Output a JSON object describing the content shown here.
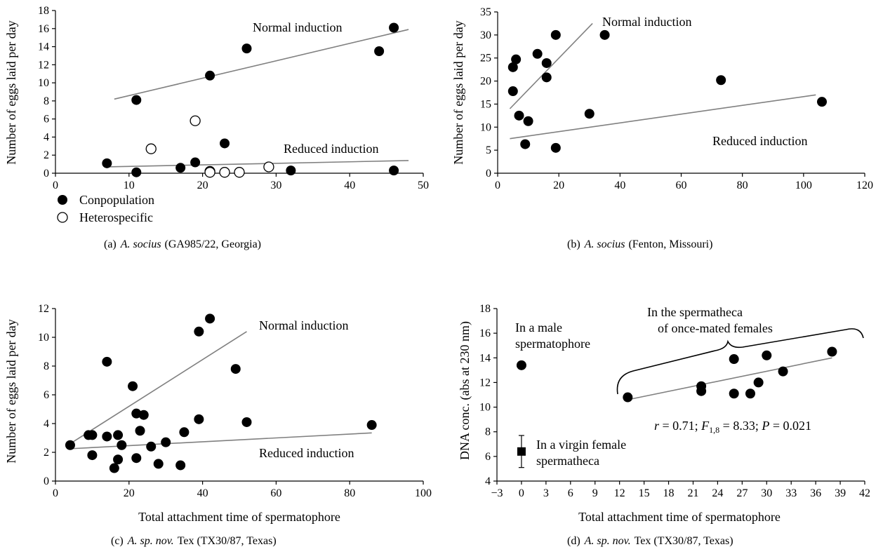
{
  "colors": {
    "marker_fill": "#000000",
    "marker_open": "#ffffff",
    "trendline": "#808080",
    "axis": "#000000"
  },
  "chart_data": [
    {
      "id": "a",
      "type": "scatter",
      "caption": {
        "label": "(a)",
        "species": "A. socius",
        "rest": "(GA985/22, Georgia)"
      },
      "xlabel": "",
      "ylabel": "Number of eggs laid per day",
      "xlim": [
        0,
        50
      ],
      "ylim": [
        0,
        18
      ],
      "xticks": [
        0,
        10,
        20,
        30,
        40,
        50
      ],
      "yticks": [
        0,
        2,
        4,
        6,
        8,
        10,
        12,
        14,
        16,
        18
      ],
      "legend": {
        "placement": "bottom-left",
        "entries": [
          {
            "label": "Conpopulation",
            "marker": "filled-circle"
          },
          {
            "label": "Heterospecific",
            "marker": "open-circle"
          }
        ]
      },
      "series": [
        {
          "name": "Conpopulation",
          "marker": "filled-circle",
          "points": [
            [
              7,
              1.1
            ],
            [
              11,
              0.1
            ],
            [
              11,
              8.1
            ],
            [
              17,
              0.6
            ],
            [
              19,
              1.2
            ],
            [
              21,
              10.8
            ],
            [
              23,
              3.3
            ],
            [
              26,
              13.8
            ],
            [
              32,
              0.3
            ],
            [
              44,
              13.5
            ],
            [
              46,
              16.1
            ],
            [
              46,
              0.3
            ]
          ]
        },
        {
          "name": "Heterospecific",
          "marker": "open-circle",
          "points": [
            [
              13,
              2.7
            ],
            [
              19,
              5.8
            ],
            [
              21,
              0.2
            ],
            [
              21,
              0.1
            ],
            [
              23,
              0.1
            ],
            [
              25,
              0.1
            ],
            [
              29,
              0.7
            ]
          ]
        }
      ],
      "trendlines": [
        {
          "x": [
            8,
            48
          ],
          "y": [
            8.2,
            15.9
          ]
        },
        {
          "x": [
            7,
            48
          ],
          "y": [
            0.7,
            1.4
          ]
        }
      ],
      "annotations": [
        "Normal induction",
        "Reduced induction"
      ]
    },
    {
      "id": "b",
      "type": "scatter",
      "caption": {
        "label": "(b)",
        "species": "A. socius",
        "rest": "(Fenton, Missouri)"
      },
      "xlabel": "",
      "ylabel": "Number of eggs laid per day",
      "xlim": [
        0,
        120
      ],
      "ylim": [
        0,
        35
      ],
      "xticks": [
        0,
        20,
        40,
        60,
        80,
        100,
        120
      ],
      "yticks": [
        0,
        5,
        10,
        15,
        20,
        25,
        30,
        35
      ],
      "series": [
        {
          "name": "",
          "marker": "filled-circle",
          "points": [
            [
              5,
              23
            ],
            [
              5,
              17.8
            ],
            [
              6,
              24.7
            ],
            [
              7,
              12.5
            ],
            [
              9,
              6.3
            ],
            [
              10,
              11.3
            ],
            [
              13,
              25.9
            ],
            [
              16,
              23.9
            ],
            [
              16,
              20.8
            ],
            [
              19,
              30
            ],
            [
              19,
              5.5
            ],
            [
              30,
              12.9
            ],
            [
              35,
              30
            ],
            [
              73,
              20.2
            ],
            [
              106,
              15.5
            ]
          ]
        }
      ],
      "trendlines": [
        {
          "x": [
            4,
            31
          ],
          "y": [
            14,
            32.5
          ]
        },
        {
          "x": [
            4,
            104
          ],
          "y": [
            7.5,
            17
          ]
        }
      ],
      "annotations": [
        "Normal induction",
        "Reduced induction"
      ]
    },
    {
      "id": "c",
      "type": "scatter",
      "caption": {
        "label": "(c)",
        "species": "A. sp. nov.",
        "rest": "Tex (TX30/87, Texas)"
      },
      "xlabel": "Total attachment time of spermatophore",
      "ylabel": "Number of eggs laid per day",
      "xlim": [
        0,
        100
      ],
      "ylim": [
        0,
        12
      ],
      "xticks": [
        0,
        20,
        40,
        60,
        80,
        100
      ],
      "yticks": [
        0,
        2,
        4,
        6,
        8,
        10,
        12
      ],
      "series": [
        {
          "name": "",
          "marker": "filled-circle",
          "points": [
            [
              4,
              2.5
            ],
            [
              9,
              3.2
            ],
            [
              10,
              3.2
            ],
            [
              10,
              1.8
            ],
            [
              14,
              8.3
            ],
            [
              14,
              3.1
            ],
            [
              16,
              0.9
            ],
            [
              17,
              3.2
            ],
            [
              17,
              1.5
            ],
            [
              18,
              2.5
            ],
            [
              21,
              6.6
            ],
            [
              22,
              4.7
            ],
            [
              22,
              1.6
            ],
            [
              23,
              3.5
            ],
            [
              24,
              4.6
            ],
            [
              26,
              2.4
            ],
            [
              28,
              1.2
            ],
            [
              30,
              2.7
            ],
            [
              34,
              1.1
            ],
            [
              35,
              3.4
            ],
            [
              39,
              10.4
            ],
            [
              39,
              4.3
            ],
            [
              42,
              11.3
            ],
            [
              49,
              7.8
            ],
            [
              52,
              4.1
            ],
            [
              86,
              3.9
            ]
          ]
        }
      ],
      "trendlines": [
        {
          "x": [
            4,
            52
          ],
          "y": [
            2.6,
            10.4
          ]
        },
        {
          "x": [
            4,
            86
          ],
          "y": [
            2.25,
            3.35
          ]
        }
      ],
      "annotations": [
        "Normal induction",
        "Reduced induction"
      ]
    },
    {
      "id": "d",
      "type": "scatter",
      "caption": {
        "label": "(d)",
        "species": "A. sp. nov.",
        "rest": "Tex (TX30/87, Texas)"
      },
      "xlabel": "Total attachment time of spermatophore",
      "ylabel": "DNA conc. (abs at 230 nm)",
      "xlim": [
        -3,
        42
      ],
      "ylim": [
        4,
        18
      ],
      "xticks": [
        -3,
        0,
        3,
        6,
        9,
        12,
        15,
        18,
        21,
        24,
        27,
        30,
        33,
        36,
        39,
        42
      ],
      "xtick_labels": [
        "−3",
        "0",
        "3",
        "6",
        "9",
        "12",
        "15",
        "18",
        "21",
        "24",
        "27",
        "30",
        "33",
        "36",
        "39",
        "42"
      ],
      "yticks": [
        4,
        6,
        8,
        10,
        12,
        14,
        16,
        18
      ],
      "series": [
        {
          "name": "",
          "marker": "filled-circle",
          "points": [
            [
              13,
              10.8
            ],
            [
              22,
              11.7
            ],
            [
              22,
              11.3
            ],
            [
              26,
              13.9
            ],
            [
              26,
              11.1
            ],
            [
              28,
              11.1
            ],
            [
              29,
              12.0
            ],
            [
              30,
              14.2
            ],
            [
              32,
              12.9
            ],
            [
              38,
              14.5
            ]
          ]
        },
        {
          "name": "",
          "marker": "filled-circle",
          "points": [
            [
              0,
              13.4
            ]
          ],
          "error": [
            0.3
          ]
        },
        {
          "name": "",
          "marker": "filled-square",
          "points": [
            [
              0,
              6.4
            ]
          ],
          "error": [
            1.3
          ]
        }
      ],
      "trendlines": [
        {
          "x": [
            13,
            38
          ],
          "y": [
            10.6,
            14.0
          ]
        }
      ],
      "annotations": {
        "male": [
          "In a male",
          "spermatophore"
        ],
        "virgin": [
          "In a virgin female",
          "spermatheca"
        ],
        "sperm": [
          "In the spermatheca",
          "of once-mated females"
        ],
        "stats": {
          "r": "r",
          "r_eq": " = 0.71; ",
          "F": "F",
          "F_sub": "1,8",
          "F_eq": " = 8.33; ",
          "P": "P",
          "P_eq": " = 0.021"
        }
      }
    }
  ]
}
